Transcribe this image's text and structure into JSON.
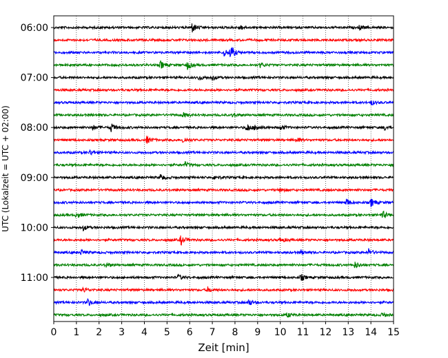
{
  "chart_data": {
    "type": "line",
    "title": "",
    "xlabel": "Zeit  [min]",
    "ylabel": "UTC (Lokalzeit = UTC + 02:00)",
    "xlim": [
      0,
      15
    ],
    "x_ticks": [
      "0",
      "1",
      "2",
      "3",
      "4",
      "5",
      "6",
      "7",
      "8",
      "9",
      "10",
      "11",
      "12",
      "13",
      "14",
      "15"
    ],
    "y_tick_labels": [
      "06:00",
      "07:00",
      "08:00",
      "09:00",
      "10:00",
      "11:00"
    ],
    "row_interval_min": 15,
    "grid": "vertical dotted lines at each minute",
    "trace_colors": [
      "#000000",
      "#ff0000",
      "#0000ff",
      "#008000"
    ],
    "traces": [
      {
        "start": "06:00",
        "color": "#000000",
        "events": [
          {
            "t": 6.1,
            "amp": 0.6
          },
          {
            "t": 8.2,
            "amp": 0.3
          },
          {
            "t": 13.5,
            "amp": 0.3
          }
        ]
      },
      {
        "start": "06:15",
        "color": "#ff0000",
        "events": []
      },
      {
        "start": "06:30",
        "color": "#0000ff",
        "events": [
          {
            "t": 7.8,
            "amp": 0.9
          },
          {
            "t": 7.5,
            "amp": 0.5
          }
        ]
      },
      {
        "start": "06:45",
        "color": "#008000",
        "events": [
          {
            "t": 4.7,
            "amp": 0.5
          },
          {
            "t": 5.9,
            "amp": 0.5
          },
          {
            "t": 9.1,
            "amp": 0.3
          }
        ]
      },
      {
        "start": "07:00",
        "color": "#000000",
        "events": [
          {
            "t": 6.4,
            "amp": 0.3
          },
          {
            "t": 7.0,
            "amp": 0.3
          }
        ]
      },
      {
        "start": "07:15",
        "color": "#ff0000",
        "events": []
      },
      {
        "start": "07:30",
        "color": "#0000ff",
        "events": [
          {
            "t": 14.0,
            "amp": 0.3
          }
        ]
      },
      {
        "start": "07:45",
        "color": "#008000",
        "events": [
          {
            "t": 5.7,
            "amp": 0.3
          },
          {
            "t": 7.9,
            "amp": 0.3
          }
        ]
      },
      {
        "start": "08:00",
        "color": "#000000",
        "events": [
          {
            "t": 1.7,
            "amp": 0.3
          },
          {
            "t": 2.5,
            "amp": 0.6
          },
          {
            "t": 8.5,
            "amp": 0.6
          },
          {
            "t": 8.9,
            "amp": 0.4
          },
          {
            "t": 10.0,
            "amp": 0.35
          },
          {
            "t": 14.6,
            "amp": 0.3
          }
        ]
      },
      {
        "start": "08:15",
        "color": "#ff0000",
        "events": [
          {
            "t": 4.1,
            "amp": 0.4
          },
          {
            "t": 5.7,
            "amp": 0.4
          },
          {
            "t": 10.7,
            "amp": 0.3
          }
        ]
      },
      {
        "start": "08:30",
        "color": "#0000ff",
        "events": [
          {
            "t": 1.6,
            "amp": 0.3
          }
        ]
      },
      {
        "start": "08:45",
        "color": "#008000",
        "events": [
          {
            "t": 5.8,
            "amp": 0.3
          }
        ]
      },
      {
        "start": "09:00",
        "color": "#000000",
        "events": [
          {
            "t": 4.7,
            "amp": 0.4
          },
          {
            "t": 7.1,
            "amp": 0.3
          }
        ]
      },
      {
        "start": "09:15",
        "color": "#ff0000",
        "events": [
          {
            "t": 10.0,
            "amp": 0.3
          }
        ]
      },
      {
        "start": "09:30",
        "color": "#0000ff",
        "events": [
          {
            "t": 12.9,
            "amp": 0.5
          },
          {
            "t": 14.0,
            "amp": 0.5
          }
        ]
      },
      {
        "start": "09:45",
        "color": "#008000",
        "events": [
          {
            "t": 1.0,
            "amp": 0.35
          },
          {
            "t": 14.5,
            "amp": 0.5
          }
        ]
      },
      {
        "start": "10:00",
        "color": "#000000",
        "events": [
          {
            "t": 1.3,
            "amp": 0.3
          }
        ]
      },
      {
        "start": "10:15",
        "color": "#ff0000",
        "events": [
          {
            "t": 5.6,
            "amp": 0.6
          },
          {
            "t": 10.0,
            "amp": 0.3
          }
        ]
      },
      {
        "start": "10:30",
        "color": "#0000ff",
        "events": [
          {
            "t": 1.2,
            "amp": 0.3
          },
          {
            "t": 10.9,
            "amp": 0.3
          },
          {
            "t": 13.9,
            "amp": 0.4
          }
        ]
      },
      {
        "start": "10:45",
        "color": "#008000",
        "events": [
          {
            "t": 2.3,
            "amp": 0.3
          },
          {
            "t": 13.3,
            "amp": 0.4
          }
        ]
      },
      {
        "start": "11:00",
        "color": "#000000",
        "events": [
          {
            "t": 5.5,
            "amp": 0.3
          },
          {
            "t": 10.9,
            "amp": 0.4
          }
        ]
      },
      {
        "start": "11:15",
        "color": "#ff0000",
        "events": [
          {
            "t": 1.3,
            "amp": 0.3
          },
          {
            "t": 6.8,
            "amp": 0.3
          }
        ]
      },
      {
        "start": "11:30",
        "color": "#0000ff",
        "events": [
          {
            "t": 1.5,
            "amp": 0.45
          },
          {
            "t": 8.6,
            "amp": 0.4
          }
        ]
      },
      {
        "start": "11:45",
        "color": "#008000",
        "events": [
          {
            "t": 10.3,
            "amp": 0.3
          },
          {
            "t": 14.5,
            "amp": 0.3
          }
        ]
      }
    ]
  }
}
